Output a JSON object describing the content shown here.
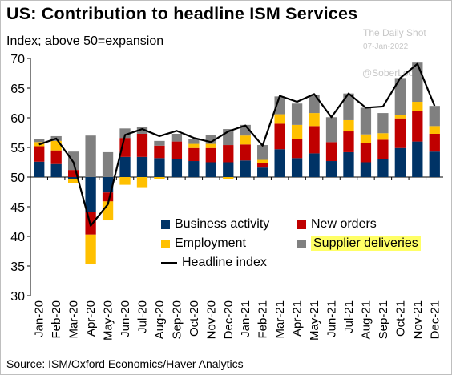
{
  "colors": {
    "business": "#003366",
    "orders": "#c00000",
    "employment": "#ffc000",
    "supplier": "#808080",
    "headline": "#000000",
    "highlight": "#ffff66"
  },
  "chart_data": {
    "type": "bar",
    "title": "US: Contribution to headline ISM Services",
    "subtitle": "Index; above 50=expansion",
    "source": "Source: ISM/Oxford Economics/Haver Analytics",
    "watermark": "The Daily Shot",
    "watermark_date": "07-Jan-2022",
    "handle": "@SoberLook",
    "ylim": [
      30,
      70
    ],
    "yticks": [
      30,
      35,
      40,
      45,
      50,
      55,
      60,
      65,
      70
    ],
    "baseline": 50,
    "grid": false,
    "legend_position": "bottom-right inside",
    "categories": [
      "Jan-20",
      "Feb-20",
      "Mar-20",
      "Apr-20",
      "May-20",
      "Jun-20",
      "Jul-20",
      "Aug-20",
      "Sep-20",
      "Oct-20",
      "Nov-20",
      "Dec-20",
      "Jan-21",
      "Feb-21",
      "Mar-21",
      "Apr-21",
      "May-21",
      "Jun-21",
      "Jul-21",
      "Aug-21",
      "Sep-21",
      "Oct-21",
      "Nov-21",
      "Dec-21"
    ],
    "series": [
      {
        "name": "Business activity",
        "values": [
          2.6,
          2.2,
          -0.3,
          -5.9,
          -2.6,
          3.4,
          3.4,
          3.2,
          3.1,
          2.7,
          2.5,
          2.5,
          2.8,
          1.6,
          4.7,
          3.2,
          4.0,
          2.7,
          4.2,
          2.5,
          3.0,
          4.9,
          6.0,
          4.3
        ]
      },
      {
        "name": "New orders",
        "values": [
          2.6,
          2.3,
          1.2,
          -3.8,
          -1.5,
          3.2,
          3.9,
          2.1,
          2.9,
          2.2,
          2.4,
          2.9,
          2.7,
          0.7,
          4.3,
          3.2,
          4.6,
          3.2,
          3.5,
          3.3,
          3.3,
          5.0,
          5.1,
          3.0
        ]
      },
      {
        "name": "Employment",
        "values": [
          0.7,
          1.6,
          -0.7,
          -4.9,
          -3.2,
          -1.3,
          -1.7,
          -0.3,
          0.0,
          0.7,
          0.7,
          -0.3,
          1.5,
          0.6,
          1.6,
          2.4,
          2.2,
          0.0,
          1.9,
          1.4,
          1.1,
          0.6,
          1.6,
          1.3
        ]
      },
      {
        "name": "Supplier deliveries",
        "values": [
          0.5,
          0.8,
          3.1,
          7.0,
          4.2,
          1.6,
          1.2,
          0.8,
          1.3,
          0.8,
          1.5,
          2.7,
          1.8,
          2.5,
          3.0,
          3.6,
          3.1,
          4.2,
          4.5,
          4.5,
          3.4,
          6.2,
          6.6,
          3.4
        ]
      }
    ],
    "headline": {
      "name": "Headline index",
      "values": [
        55.5,
        56.5,
        52.5,
        41.8,
        45.4,
        57.1,
        58.1,
        56.9,
        57.8,
        56.6,
        55.9,
        57.7,
        58.7,
        55.3,
        63.7,
        62.7,
        64.0,
        60.1,
        64.1,
        61.7,
        61.9,
        66.7,
        69.1,
        62.0
      ]
    }
  }
}
